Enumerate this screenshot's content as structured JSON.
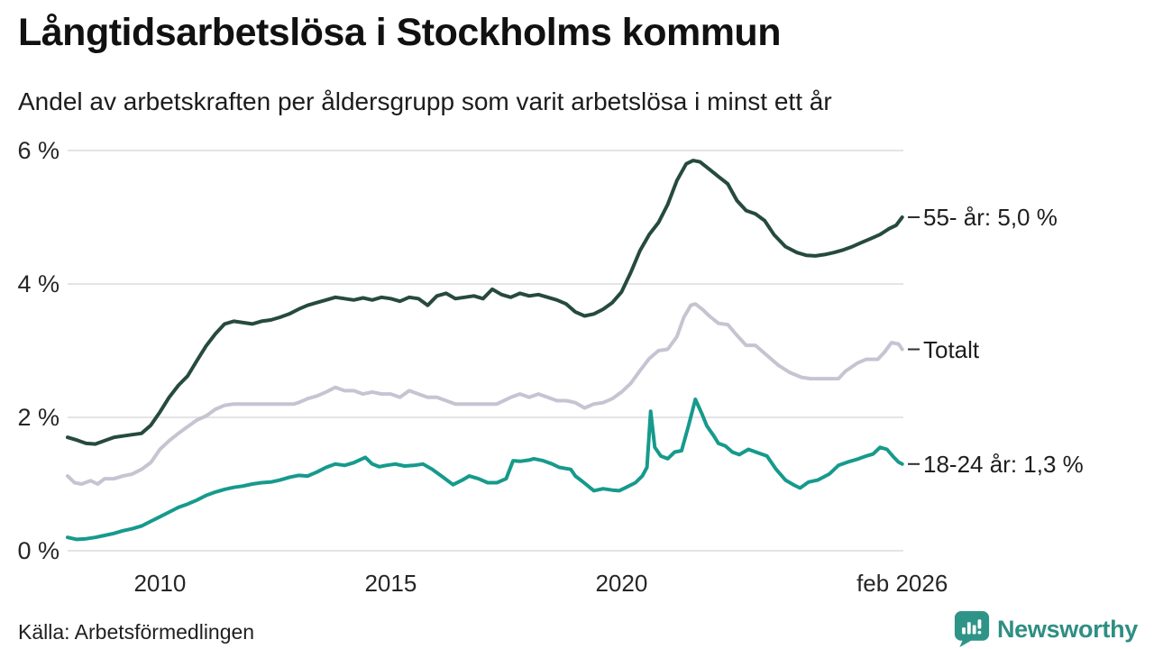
{
  "title": "Långtidsarbetslösa i Stockholms kommun",
  "subtitle": "Andel av arbetskraften per åldersgrupp som varit arbetslösa i minst ett år",
  "source": "Källa: Arbetsförmedlingen",
  "brand": {
    "name": "Newsworthy",
    "icon": "bar-chart-speech-bubble-icon",
    "color": "#2f8e84"
  },
  "colors": {
    "background": "#ffffff",
    "gridline": "#e4e3e8",
    "axis_text": "#262626",
    "label_dash": "#2e2e2e",
    "series_55": "#264a3e",
    "series_total": "#c6c4d2",
    "series_18_24": "#169a8c"
  },
  "chart_data": {
    "type": "line",
    "title": "Långtidsarbetslösa i Stockholms kommun",
    "subtitle": "Andel av arbetskraften per åldersgrupp som varit arbetslösa i minst ett år",
    "unit": "% av arbetskraften",
    "grid": "horizontal",
    "legend_position": "right-end-labels",
    "x_range": [
      2008,
      2026.17
    ],
    "ylim": [
      0,
      6
    ],
    "y_ticks": [
      {
        "value": 0,
        "label": "0 %"
      },
      {
        "value": 2,
        "label": "2 %"
      },
      {
        "value": 4,
        "label": "4 %"
      },
      {
        "value": 6,
        "label": "6 %"
      }
    ],
    "x_ticks": [
      {
        "year": 2010,
        "label": "2010"
      },
      {
        "year": 2015,
        "label": "2015"
      },
      {
        "year": 2020,
        "label": "2020"
      },
      {
        "year": 2026.08,
        "label": "feb 2026"
      }
    ],
    "series": [
      {
        "name": "55- år",
        "end_label": "55- år: 5,0 %",
        "last_value": "5,0 %",
        "color": "#264a3e",
        "points": [
          [
            2008.0,
            1.7
          ],
          [
            2008.2,
            1.66
          ],
          [
            2008.4,
            1.61
          ],
          [
            2008.6,
            1.6
          ],
          [
            2008.8,
            1.65
          ],
          [
            2009.0,
            1.7
          ],
          [
            2009.2,
            1.72
          ],
          [
            2009.4,
            1.74
          ],
          [
            2009.6,
            1.76
          ],
          [
            2009.8,
            1.88
          ],
          [
            2010.0,
            2.08
          ],
          [
            2010.2,
            2.3
          ],
          [
            2010.4,
            2.48
          ],
          [
            2010.6,
            2.62
          ],
          [
            2010.8,
            2.85
          ],
          [
            2011.0,
            3.07
          ],
          [
            2011.2,
            3.25
          ],
          [
            2011.4,
            3.4
          ],
          [
            2011.6,
            3.44
          ],
          [
            2011.8,
            3.42
          ],
          [
            2012.0,
            3.4
          ],
          [
            2012.2,
            3.44
          ],
          [
            2012.4,
            3.46
          ],
          [
            2012.6,
            3.5
          ],
          [
            2012.8,
            3.55
          ],
          [
            2013.0,
            3.62
          ],
          [
            2013.2,
            3.68
          ],
          [
            2013.4,
            3.72
          ],
          [
            2013.6,
            3.76
          ],
          [
            2013.8,
            3.8
          ],
          [
            2014.0,
            3.78
          ],
          [
            2014.2,
            3.76
          ],
          [
            2014.4,
            3.79
          ],
          [
            2014.6,
            3.76
          ],
          [
            2014.8,
            3.8
          ],
          [
            2015.0,
            3.78
          ],
          [
            2015.2,
            3.74
          ],
          [
            2015.4,
            3.8
          ],
          [
            2015.6,
            3.78
          ],
          [
            2015.8,
            3.68
          ],
          [
            2016.0,
            3.82
          ],
          [
            2016.2,
            3.86
          ],
          [
            2016.4,
            3.78
          ],
          [
            2016.6,
            3.8
          ],
          [
            2016.8,
            3.82
          ],
          [
            2017.0,
            3.78
          ],
          [
            2017.2,
            3.92
          ],
          [
            2017.4,
            3.84
          ],
          [
            2017.6,
            3.8
          ],
          [
            2017.8,
            3.86
          ],
          [
            2018.0,
            3.82
          ],
          [
            2018.2,
            3.84
          ],
          [
            2018.4,
            3.8
          ],
          [
            2018.6,
            3.76
          ],
          [
            2018.8,
            3.7
          ],
          [
            2019.0,
            3.58
          ],
          [
            2019.2,
            3.52
          ],
          [
            2019.4,
            3.55
          ],
          [
            2019.6,
            3.62
          ],
          [
            2019.8,
            3.72
          ],
          [
            2020.0,
            3.88
          ],
          [
            2020.2,
            4.17
          ],
          [
            2020.4,
            4.5
          ],
          [
            2020.6,
            4.74
          ],
          [
            2020.8,
            4.92
          ],
          [
            2021.0,
            5.19
          ],
          [
            2021.2,
            5.55
          ],
          [
            2021.4,
            5.8
          ],
          [
            2021.55,
            5.85
          ],
          [
            2021.7,
            5.83
          ],
          [
            2021.9,
            5.72
          ],
          [
            2022.1,
            5.61
          ],
          [
            2022.3,
            5.5
          ],
          [
            2022.5,
            5.25
          ],
          [
            2022.7,
            5.1
          ],
          [
            2022.9,
            5.05
          ],
          [
            2023.1,
            4.95
          ],
          [
            2023.3,
            4.74
          ],
          [
            2023.55,
            4.56
          ],
          [
            2023.8,
            4.47
          ],
          [
            2024.0,
            4.43
          ],
          [
            2024.2,
            4.42
          ],
          [
            2024.4,
            4.44
          ],
          [
            2024.6,
            4.47
          ],
          [
            2024.8,
            4.51
          ],
          [
            2025.0,
            4.56
          ],
          [
            2025.2,
            4.62
          ],
          [
            2025.4,
            4.68
          ],
          [
            2025.6,
            4.74
          ],
          [
            2025.8,
            4.83
          ],
          [
            2025.95,
            4.88
          ],
          [
            2026.08,
            5.0
          ]
        ]
      },
      {
        "name": "Totalt",
        "end_label": "Totalt",
        "last_value": "3,0 %",
        "color": "#c6c4d2",
        "points": [
          [
            2008.0,
            1.12
          ],
          [
            2008.15,
            1.02
          ],
          [
            2008.3,
            1.0
          ],
          [
            2008.5,
            1.05
          ],
          [
            2008.65,
            1.0
          ],
          [
            2008.8,
            1.08
          ],
          [
            2009.0,
            1.08
          ],
          [
            2009.2,
            1.12
          ],
          [
            2009.4,
            1.15
          ],
          [
            2009.6,
            1.22
          ],
          [
            2009.8,
            1.32
          ],
          [
            2010.0,
            1.52
          ],
          [
            2010.2,
            1.65
          ],
          [
            2010.4,
            1.76
          ],
          [
            2010.6,
            1.86
          ],
          [
            2010.8,
            1.96
          ],
          [
            2011.0,
            2.02
          ],
          [
            2011.2,
            2.12
          ],
          [
            2011.4,
            2.18
          ],
          [
            2011.6,
            2.2
          ],
          [
            2011.8,
            2.2
          ],
          [
            2012.0,
            2.2
          ],
          [
            2012.3,
            2.2
          ],
          [
            2012.6,
            2.2
          ],
          [
            2012.9,
            2.2
          ],
          [
            2013.0,
            2.22
          ],
          [
            2013.2,
            2.28
          ],
          [
            2013.4,
            2.32
          ],
          [
            2013.6,
            2.38
          ],
          [
            2013.8,
            2.45
          ],
          [
            2014.0,
            2.4
          ],
          [
            2014.2,
            2.4
          ],
          [
            2014.4,
            2.35
          ],
          [
            2014.6,
            2.38
          ],
          [
            2014.8,
            2.35
          ],
          [
            2015.0,
            2.35
          ],
          [
            2015.2,
            2.3
          ],
          [
            2015.4,
            2.4
          ],
          [
            2015.6,
            2.35
          ],
          [
            2015.8,
            2.3
          ],
          [
            2016.0,
            2.3
          ],
          [
            2016.2,
            2.25
          ],
          [
            2016.4,
            2.2
          ],
          [
            2016.7,
            2.2
          ],
          [
            2017.0,
            2.2
          ],
          [
            2017.3,
            2.2
          ],
          [
            2017.6,
            2.3
          ],
          [
            2017.8,
            2.35
          ],
          [
            2018.0,
            2.3
          ],
          [
            2018.2,
            2.35
          ],
          [
            2018.4,
            2.3
          ],
          [
            2018.6,
            2.25
          ],
          [
            2018.8,
            2.25
          ],
          [
            2019.0,
            2.22
          ],
          [
            2019.2,
            2.14
          ],
          [
            2019.4,
            2.2
          ],
          [
            2019.6,
            2.22
          ],
          [
            2019.8,
            2.28
          ],
          [
            2020.0,
            2.38
          ],
          [
            2020.2,
            2.51
          ],
          [
            2020.4,
            2.7
          ],
          [
            2020.6,
            2.88
          ],
          [
            2020.8,
            3.0
          ],
          [
            2021.0,
            3.02
          ],
          [
            2021.2,
            3.21
          ],
          [
            2021.35,
            3.5
          ],
          [
            2021.5,
            3.68
          ],
          [
            2021.6,
            3.7
          ],
          [
            2021.75,
            3.62
          ],
          [
            2021.9,
            3.52
          ],
          [
            2022.1,
            3.41
          ],
          [
            2022.3,
            3.39
          ],
          [
            2022.5,
            3.23
          ],
          [
            2022.7,
            3.08
          ],
          [
            2022.9,
            3.08
          ],
          [
            2023.1,
            2.96
          ],
          [
            2023.4,
            2.78
          ],
          [
            2023.65,
            2.67
          ],
          [
            2023.9,
            2.6
          ],
          [
            2024.1,
            2.58
          ],
          [
            2024.4,
            2.58
          ],
          [
            2024.7,
            2.58
          ],
          [
            2024.85,
            2.69
          ],
          [
            2025.1,
            2.81
          ],
          [
            2025.3,
            2.87
          ],
          [
            2025.55,
            2.87
          ],
          [
            2025.7,
            2.98
          ],
          [
            2025.85,
            3.12
          ],
          [
            2026.0,
            3.1
          ],
          [
            2026.08,
            3.02
          ]
        ]
      },
      {
        "name": "18-24 år",
        "end_label": "18-24 år: 1,3 %",
        "last_value": "1,3 %",
        "color": "#169a8c",
        "points": [
          [
            2008.0,
            0.2
          ],
          [
            2008.2,
            0.17
          ],
          [
            2008.4,
            0.18
          ],
          [
            2008.6,
            0.2
          ],
          [
            2008.8,
            0.23
          ],
          [
            2009.0,
            0.26
          ],
          [
            2009.2,
            0.3
          ],
          [
            2009.4,
            0.33
          ],
          [
            2009.6,
            0.37
          ],
          [
            2009.8,
            0.44
          ],
          [
            2010.0,
            0.51
          ],
          [
            2010.2,
            0.58
          ],
          [
            2010.4,
            0.65
          ],
          [
            2010.6,
            0.7
          ],
          [
            2010.8,
            0.76
          ],
          [
            2011.0,
            0.83
          ],
          [
            2011.2,
            0.88
          ],
          [
            2011.4,
            0.92
          ],
          [
            2011.6,
            0.95
          ],
          [
            2011.8,
            0.97
          ],
          [
            2012.0,
            1.0
          ],
          [
            2012.2,
            1.02
          ],
          [
            2012.4,
            1.03
          ],
          [
            2012.6,
            1.06
          ],
          [
            2012.8,
            1.1
          ],
          [
            2013.0,
            1.13
          ],
          [
            2013.2,
            1.12
          ],
          [
            2013.4,
            1.18
          ],
          [
            2013.6,
            1.25
          ],
          [
            2013.8,
            1.3
          ],
          [
            2014.0,
            1.28
          ],
          [
            2014.2,
            1.32
          ],
          [
            2014.45,
            1.4
          ],
          [
            2014.6,
            1.3
          ],
          [
            2014.75,
            1.26
          ],
          [
            2014.9,
            1.28
          ],
          [
            2015.1,
            1.3
          ],
          [
            2015.3,
            1.27
          ],
          [
            2015.5,
            1.28
          ],
          [
            2015.7,
            1.3
          ],
          [
            2015.9,
            1.22
          ],
          [
            2016.1,
            1.12
          ],
          [
            2016.35,
            0.99
          ],
          [
            2016.55,
            1.06
          ],
          [
            2016.7,
            1.12
          ],
          [
            2016.9,
            1.08
          ],
          [
            2017.1,
            1.02
          ],
          [
            2017.3,
            1.02
          ],
          [
            2017.5,
            1.08
          ],
          [
            2017.65,
            1.35
          ],
          [
            2017.8,
            1.34
          ],
          [
            2018.0,
            1.36
          ],
          [
            2018.1,
            1.38
          ],
          [
            2018.3,
            1.35
          ],
          [
            2018.5,
            1.3
          ],
          [
            2018.65,
            1.25
          ],
          [
            2018.9,
            1.22
          ],
          [
            2019.0,
            1.12
          ],
          [
            2019.15,
            1.04
          ],
          [
            2019.4,
            0.9
          ],
          [
            2019.6,
            0.93
          ],
          [
            2019.8,
            0.91
          ],
          [
            2019.95,
            0.9
          ],
          [
            2020.1,
            0.95
          ],
          [
            2020.3,
            1.02
          ],
          [
            2020.45,
            1.12
          ],
          [
            2020.55,
            1.25
          ],
          [
            2020.63,
            2.09
          ],
          [
            2020.72,
            1.55
          ],
          [
            2020.85,
            1.42
          ],
          [
            2021.0,
            1.38
          ],
          [
            2021.15,
            1.48
          ],
          [
            2021.3,
            1.5
          ],
          [
            2021.45,
            1.87
          ],
          [
            2021.6,
            2.27
          ],
          [
            2021.73,
            2.07
          ],
          [
            2021.85,
            1.87
          ],
          [
            2022.0,
            1.72
          ],
          [
            2022.1,
            1.61
          ],
          [
            2022.25,
            1.57
          ],
          [
            2022.4,
            1.48
          ],
          [
            2022.55,
            1.44
          ],
          [
            2022.75,
            1.52
          ],
          [
            2022.95,
            1.47
          ],
          [
            2023.15,
            1.42
          ],
          [
            2023.35,
            1.22
          ],
          [
            2023.55,
            1.06
          ],
          [
            2023.75,
            0.98
          ],
          [
            2023.87,
            0.94
          ],
          [
            2024.05,
            1.03
          ],
          [
            2024.25,
            1.06
          ],
          [
            2024.5,
            1.15
          ],
          [
            2024.7,
            1.28
          ],
          [
            2024.9,
            1.33
          ],
          [
            2025.1,
            1.37
          ],
          [
            2025.3,
            1.42
          ],
          [
            2025.45,
            1.45
          ],
          [
            2025.6,
            1.55
          ],
          [
            2025.75,
            1.52
          ],
          [
            2025.9,
            1.4
          ],
          [
            2026.0,
            1.33
          ],
          [
            2026.08,
            1.3
          ]
        ]
      }
    ]
  }
}
